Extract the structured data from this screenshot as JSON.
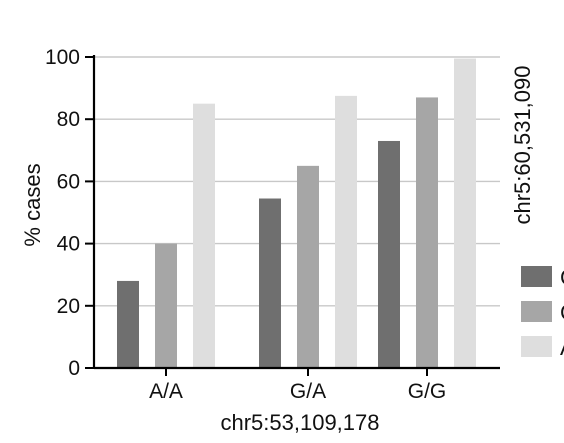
{
  "chart_data": {
    "type": "bar",
    "categories": [
      "A/A",
      "G/A",
      "G/G"
    ],
    "series": [
      {
        "name": "C",
        "color": "#6f6f6f",
        "values": [
          28,
          54.5,
          73
        ]
      },
      {
        "name": "C",
        "color": "#a6a6a6",
        "values": [
          40,
          65,
          87
        ]
      },
      {
        "name": "A",
        "color": "#dedede",
        "values": [
          85,
          87.5,
          99.5
        ]
      }
    ],
    "xlabel": "chr5:53,109,178",
    "ylabel": "% cases",
    "right_label": "chr5:60,531,090",
    "ylim": [
      0,
      100
    ],
    "yticks": [
      0,
      20,
      40,
      60,
      80,
      100
    ],
    "grid": true,
    "legend_position": "right"
  }
}
